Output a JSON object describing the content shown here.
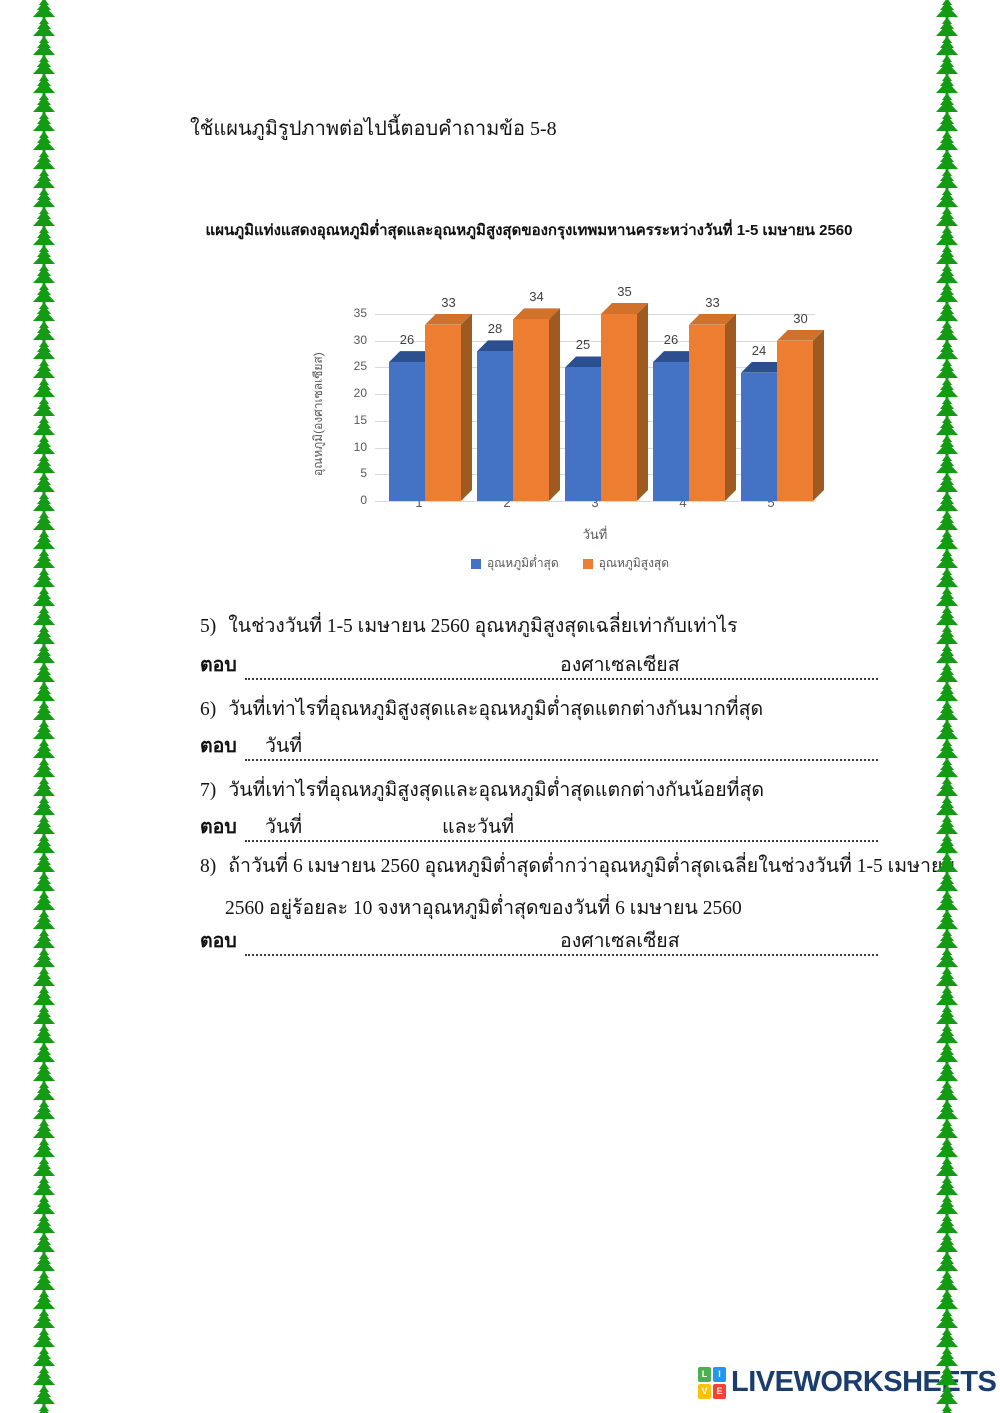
{
  "page": {
    "instruction": "ใช้แผนภูมิรูปภาพต่อไปนี้ตอบคำถามข้อ 5-8",
    "background": "#ffffff",
    "tree_border_color": "#149B14"
  },
  "chart_data": {
    "type": "bar",
    "style": "3d",
    "title": "แผนภูมิแท่งแสดงอุณหภูมิต่ำสุดและอุณหภูมิสูงสุดของกรุงเทพมหานครระหว่างวันที่ 1-5 เมษายน 2560",
    "categories": [
      "1",
      "2",
      "3",
      "4",
      "5"
    ],
    "series": [
      {
        "name": "อุณหภูมิต่ำสุด",
        "values": [
          26,
          28,
          25,
          26,
          24
        ],
        "color": "#4472C4",
        "top_color": "#2C508F",
        "side_color": "#26457F"
      },
      {
        "name": "อุณหภูมิสูงสุด",
        "values": [
          33,
          34,
          35,
          33,
          30
        ],
        "color": "#ED7D31",
        "top_color": "#D2722A",
        "side_color": "#9E5A20"
      }
    ],
    "xlabel": "วันที่",
    "ylabel": "อุณหภูมิ(องศาเซลเซียส)",
    "ylim": [
      0,
      35
    ],
    "yticks": [
      0,
      5,
      10,
      15,
      20,
      25,
      30,
      35
    ],
    "grid": true,
    "legend_position": "bottom"
  },
  "questions": [
    {
      "number": "5)",
      "lines": [
        "ในช่วงวันที่ 1-5 เมษายน 2560 อุณหภูมิสูงสุดเฉลี่ยเท่ากับเท่าไร"
      ],
      "answer_label": "ตอบ",
      "answer_line_texts": [
        "องศาเซลเซียส"
      ]
    },
    {
      "number": "6)",
      "lines": [
        "วันที่เท่าไรที่อุณหภูมิสูงสุดและอุณหภูมิต่ำสุดแตกต่างกันมากที่สุด"
      ],
      "answer_label": "ตอบ",
      "answer_line_texts": [
        "วันที่"
      ]
    },
    {
      "number": "7)",
      "lines": [
        "วันที่เท่าไรที่อุณหภูมิสูงสุดและอุณหภูมิต่ำสุดแตกต่างกันน้อยที่สุด"
      ],
      "answer_label": "ตอบ",
      "answer_line_texts": [
        "วันที่",
        "และวันที่"
      ]
    },
    {
      "number": "8)",
      "lines": [
        "ถ้าวันที่ 6 เมษายน 2560 อุณหภูมิต่ำสุดต่ำกว่าอุณหภูมิต่ำสุดเฉลี่ยในช่วงวันที่ 1-5 เมษายน",
        "2560  อยู่ร้อยละ 10 จงหาอุณหภูมิต่ำสุดของวันที่ 6 เมษายน 2560"
      ],
      "answer_label": "ตอบ",
      "answer_line_texts": [
        "องศาเซลเซียส"
      ]
    }
  ],
  "footer": {
    "logo_text": "LIVEWORKSHEETS",
    "logo_text_color": "#1B3C6E",
    "logo_tiles": [
      {
        "letter": "L",
        "color": "#4CAF50"
      },
      {
        "letter": "I",
        "color": "#2196F3"
      },
      {
        "letter": "V",
        "color": "#FFC107"
      },
      {
        "letter": "E",
        "color": "#F44336"
      }
    ]
  }
}
